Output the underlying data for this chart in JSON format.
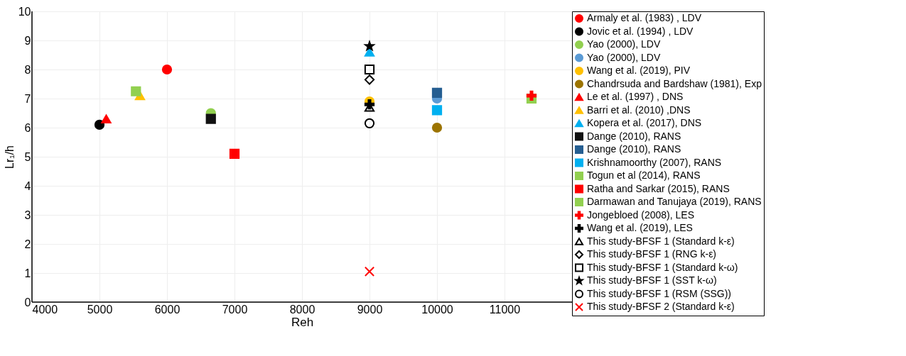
{
  "chart_data": {
    "type": "scatter",
    "xlabel": "Reh",
    "ylabel": "Lr₁/h",
    "xlim": [
      4000,
      12000
    ],
    "ylim": [
      0,
      10
    ],
    "xticks": [
      4000,
      5000,
      6000,
      7000,
      8000,
      9000,
      10000,
      11000
    ],
    "yticks": [
      0,
      1,
      2,
      3,
      4,
      5,
      6,
      7,
      8,
      9,
      10
    ],
    "grid": true,
    "legend": "right",
    "series": [
      {
        "name": "Armaly et al. (1983) , LDV",
        "color": "#ff0000",
        "marker": "circle",
        "x": [
          6000
        ],
        "values": [
          8.0
        ]
      },
      {
        "name": " Jovic et al. (1994) , LDV",
        "color": "#000000",
        "marker": "circle",
        "x": [
          5000
        ],
        "values": [
          6.1
        ]
      },
      {
        "name": "Yao (2000), LDV",
        "color": "#92d050",
        "marker": "circle",
        "x": [
          6650
        ],
        "values": [
          6.5
        ]
      },
      {
        "name": "Yao (2000), LDV",
        "color": "#5b9bd5",
        "marker": "circle",
        "x": [
          10000
        ],
        "values": [
          7.0
        ]
      },
      {
        "name": "Wang et al. (2019), PIV",
        "color": "#ffc000",
        "marker": "circle",
        "x": [
          9000
        ],
        "values": [
          6.9
        ]
      },
      {
        "name": "Chandrsuda and Bardshaw (1981), Exp",
        "color": "#9c7400",
        "marker": "circle",
        "x": [
          10000
        ],
        "values": [
          6.0
        ]
      },
      {
        "name": "Le et al. (1997) , DNS",
        "color": "#ff0000",
        "marker": "triangle",
        "x": [
          5100
        ],
        "values": [
          6.3
        ]
      },
      {
        "name": "Barri et al. (2010) ,DNS",
        "color": "#ffc000",
        "marker": "triangle",
        "x": [
          5600
        ],
        "values": [
          7.1
        ]
      },
      {
        "name": "Kopera et al. (2017), DNS",
        "color": "#00b0f0",
        "marker": "triangle",
        "x": [
          9000
        ],
        "values": [
          8.6
        ]
      },
      {
        "name": "Dange (2010), RANS",
        "color": "#111111",
        "marker": "square",
        "x": [
          6650
        ],
        "values": [
          6.3
        ]
      },
      {
        "name": "Dange (2010), RANS",
        "color": "#255e91",
        "marker": "square",
        "x": [
          10000
        ],
        "values": [
          7.2
        ]
      },
      {
        "name": "Krishnamoorthy (2007), RANS",
        "color": "#00b0f0",
        "marker": "square",
        "x": [
          10000
        ],
        "values": [
          6.6
        ]
      },
      {
        "name": "Togun et al (2014), RANS",
        "color": "#92d050",
        "marker": "square",
        "x": [
          5540
        ],
        "values": [
          7.25
        ]
      },
      {
        "name": "Ratha and Sarkar (2015), RANS",
        "color": "#ff0000",
        "marker": "square",
        "x": [
          7000
        ],
        "values": [
          5.1
        ]
      },
      {
        "name": "Darmawan and Tanujaya (2019), RANS",
        "color": "#92d050",
        "marker": "square",
        "x": [
          11400
        ],
        "values": [
          7.0
        ]
      },
      {
        "name": "Jongebloed (2008), LES",
        "color": "#ff0000",
        "marker": "plus",
        "x": [
          11400
        ],
        "values": [
          7.1
        ]
      },
      {
        "name": "Wang et al. (2019), LES",
        "color": "#000000",
        "marker": "plus",
        "x": [
          9000
        ],
        "values": [
          6.8
        ]
      },
      {
        "name": "This study-BFSF 1 (Standard k-ε)",
        "color": "#000000",
        "marker": "triangle-open",
        "x": [
          9000
        ],
        "values": [
          6.7
        ]
      },
      {
        "name": "This study-BFSF 1 (RNG k-ε)",
        "color": "#000000",
        "marker": "diamond-open",
        "x": [
          9000
        ],
        "values": [
          7.65
        ]
      },
      {
        "name": "This study-BFSF 1 (Standard k-ω)",
        "color": "#000000",
        "marker": "square-open",
        "x": [
          9000
        ],
        "values": [
          8.0
        ]
      },
      {
        "name": "This study-BFSF 1 (SST k-ω)",
        "color": "#000000",
        "marker": "star",
        "x": [
          9000
        ],
        "values": [
          8.8
        ]
      },
      {
        "name": "This study-BFSF 1 (RSM (SSG))",
        "color": "#000000",
        "marker": "circle-open",
        "x": [
          9000
        ],
        "values": [
          6.15
        ]
      },
      {
        "name": "This study-BFSF 2 (Standard k-ε)",
        "color": "#ff0000",
        "marker": "cross",
        "x": [
          9000
        ],
        "values": [
          1.05
        ]
      }
    ]
  }
}
